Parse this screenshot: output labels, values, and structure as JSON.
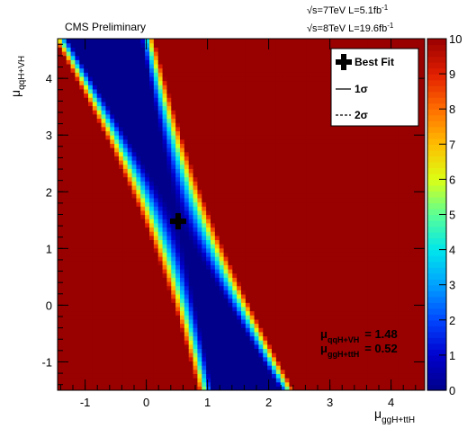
{
  "chart_data": {
    "type": "heatmap",
    "header_left": "CMS Preliminary",
    "header_right_lines": [
      {
        "pre": "√s=7TeV L=5.1fb",
        "sup": "-1"
      },
      {
        "pre": "√s=8TeV L=19.6fb",
        "sup": "-1"
      }
    ],
    "xlabel": {
      "main": "μ",
      "sub": "ggH+ttH"
    },
    "ylabel": {
      "main": "μ",
      "sub": "qqH+VH"
    },
    "xlim": [
      -1.45,
      4.55
    ],
    "ylim": [
      -1.5,
      4.7
    ],
    "x_ticks": [
      -1,
      0,
      1,
      2,
      3,
      4
    ],
    "y_ticks": [
      -1,
      0,
      1,
      2,
      3,
      4
    ],
    "z_range": [
      0,
      10
    ],
    "z_ticks": [
      0,
      1,
      2,
      3,
      4,
      5,
      6,
      7,
      8,
      9,
      10
    ],
    "best_fit": {
      "x": 0.52,
      "y": 1.48
    },
    "legend": {
      "position": "top-right",
      "entries": [
        {
          "label": "Best Fit",
          "marker": "cross"
        },
        {
          "label": "1σ",
          "marker": "solid-line"
        },
        {
          "label": "2σ",
          "marker": "dashed-line"
        }
      ]
    },
    "fit_result_lines": [
      {
        "main": "μ",
        "sub": "qqH+VH",
        "value": "= 1.48"
      },
      {
        "main": "μ",
        "sub": "ggH+ttH",
        "value": "= 0.52"
      }
    ],
    "colors": {
      "low": "#00008a",
      "high": "#990000",
      "contour": "#000000"
    }
  }
}
